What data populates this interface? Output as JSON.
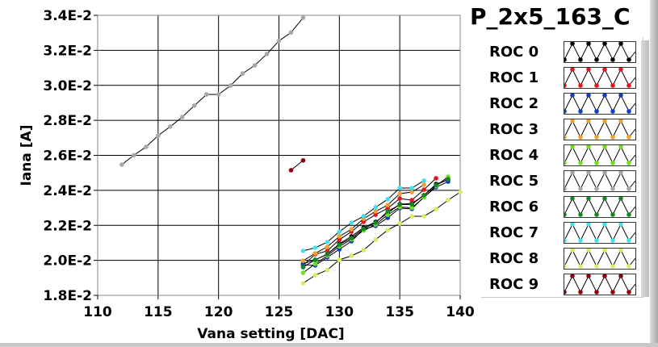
{
  "chart_data": {
    "type": "line",
    "title": "P_2x5_163_C",
    "xlabel": "Vana setting [DAC]",
    "ylabel": "Iana [A]",
    "xlim": [
      110,
      140
    ],
    "ylim": [
      0.018,
      0.034
    ],
    "xticks": [
      110,
      115,
      120,
      125,
      130,
      135,
      140
    ],
    "xtick_labels": [
      "110",
      "115",
      "120",
      "125",
      "130",
      "135",
      "140"
    ],
    "yticks": [
      0.018,
      0.02,
      0.022,
      0.024,
      0.026,
      0.028,
      0.03,
      0.032,
      0.034
    ],
    "ytick_labels": [
      "1.8E-2",
      "2.0E-2",
      "2.2E-2",
      "2.4E-2",
      "2.6E-2",
      "2.8E-2",
      "3.0E-2",
      "3.2E-2",
      "3.4E-2"
    ],
    "grid": true,
    "legend_placement": "right",
    "series": [
      {
        "name": "ROC 0",
        "color": "#000000",
        "x": [
          127,
          128,
          129,
          130,
          131,
          132,
          133,
          134,
          135,
          136,
          137,
          138,
          139
        ],
        "y": [
          0.0198,
          0.02003,
          0.02035,
          0.02095,
          0.02137,
          0.02187,
          0.0222,
          0.0227,
          0.02321,
          0.02325,
          0.02372,
          0.02436,
          0.0246
        ]
      },
      {
        "name": "ROC 1",
        "color": "#e8141c",
        "x": [
          127,
          128,
          129,
          130,
          131,
          132,
          133,
          134,
          135,
          136,
          137,
          138
        ],
        "y": [
          0.01971,
          0.02035,
          0.02054,
          0.02118,
          0.02164,
          0.0222,
          0.02261,
          0.02298,
          0.02353,
          0.02344,
          0.02404,
          0.02469
        ]
      },
      {
        "name": "ROC 2",
        "color": "#1040c0",
        "x": [
          127,
          128,
          129,
          130,
          131,
          132,
          133,
          134,
          135,
          136,
          137,
          138,
          139
        ],
        "y": [
          0.01975,
          0.01971,
          0.02017,
          0.02063,
          0.02109,
          0.02178,
          0.02197,
          0.02243,
          0.02298,
          0.02294,
          0.02362,
          0.02418,
          0.0245
        ]
      },
      {
        "name": "ROC 3",
        "color": "#f0a030",
        "x": [
          127,
          128,
          129,
          130,
          131,
          132,
          133,
          134,
          135,
          136,
          137
        ],
        "y": [
          0.01998,
          0.0204,
          0.02077,
          0.02137,
          0.02178,
          0.02238,
          0.0228,
          0.02316,
          0.02381,
          0.0239,
          0.02432
        ]
      },
      {
        "name": "ROC 4",
        "color": "#70e020",
        "x": [
          127,
          128,
          129,
          130,
          131,
          132,
          133,
          134,
          135,
          136,
          137,
          138,
          139
        ],
        "y": [
          0.01929,
          0.0198,
          0.02026,
          0.0208,
          0.0212,
          0.0217,
          0.02205,
          0.0226,
          0.02305,
          0.023,
          0.0236,
          0.02425,
          0.02478
        ]
      },
      {
        "name": "ROC 5",
        "color": "#a8a8a8",
        "x": [
          112,
          113,
          114,
          115,
          116,
          117,
          118,
          119,
          120,
          121,
          122,
          123,
          124,
          125,
          126,
          127
        ],
        "y": [
          0.02547,
          0.02601,
          0.02648,
          0.02713,
          0.02764,
          0.02819,
          0.02884,
          0.02948,
          0.02948,
          0.02999,
          0.03068,
          0.03114,
          0.03179,
          0.03254,
          0.03302,
          0.03386
        ]
      },
      {
        "name": "ROC 6",
        "color": "#108a20",
        "x": [
          127,
          128,
          129,
          130,
          131,
          132,
          133,
          134,
          135,
          136,
          137,
          138,
          139
        ],
        "y": [
          0.01961,
          0.02003,
          0.02035,
          0.0209,
          0.02127,
          0.0218,
          0.02215,
          0.0228,
          0.02318,
          0.0232,
          0.02372,
          0.0243,
          0.02464
        ]
      },
      {
        "name": "ROC 7",
        "color": "#40e0f0",
        "x": [
          127,
          128,
          129,
          130,
          131,
          132,
          133,
          134,
          135,
          136,
          137
        ],
        "y": [
          0.02054,
          0.02072,
          0.02104,
          0.02164,
          0.02215,
          0.02252,
          0.02303,
          0.02349,
          0.02413,
          0.02413,
          0.02455
        ]
      },
      {
        "name": "ROC 8",
        "color": "#d0f060",
        "x": [
          127,
          128,
          129,
          130,
          131,
          132,
          133,
          134,
          135,
          136,
          137,
          138,
          139,
          140
        ],
        "y": [
          0.01869,
          0.01915,
          0.01945,
          0.02003,
          0.02026,
          0.02058,
          0.02118,
          0.02173,
          0.0221,
          0.02252,
          0.02252,
          0.02293,
          0.02344,
          0.0239
        ]
      },
      {
        "name": "ROC 9",
        "color": "#900010",
        "x": [
          126,
          127
        ],
        "y": [
          0.02515,
          0.02571
        ]
      }
    ]
  },
  "legend": {
    "items": [
      {
        "label": "ROC 0",
        "color": "#000000"
      },
      {
        "label": "ROC 1",
        "color": "#e8141c"
      },
      {
        "label": "ROC 2",
        "color": "#1040c0"
      },
      {
        "label": "ROC 3",
        "color": "#f0a030"
      },
      {
        "label": "ROC 4",
        "color": "#70e020"
      },
      {
        "label": "ROC 5",
        "color": "#a8a8a8"
      },
      {
        "label": "ROC 6",
        "color": "#108a20"
      },
      {
        "label": "ROC 7",
        "color": "#40e0f0"
      },
      {
        "label": "ROC 8",
        "color": "#d0f060"
      },
      {
        "label": "ROC 9",
        "color": "#900010"
      }
    ]
  }
}
